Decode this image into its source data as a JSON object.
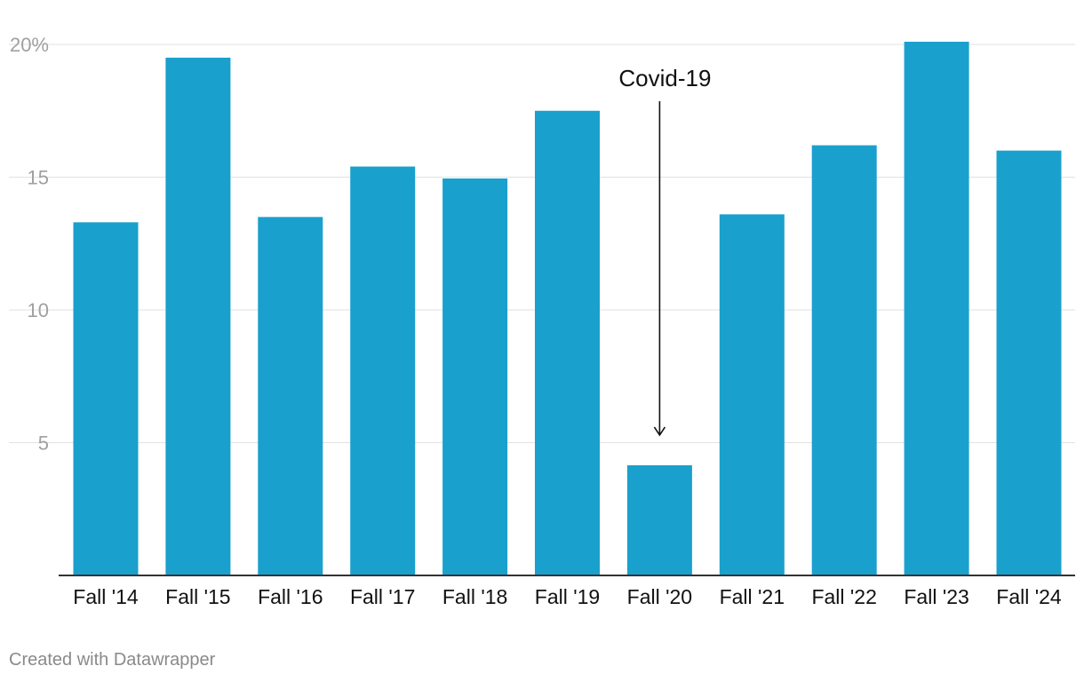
{
  "chart_data": {
    "type": "bar",
    "categories": [
      "Fall '14",
      "Fall '15",
      "Fall '16",
      "Fall '17",
      "Fall '18",
      "Fall '19",
      "Fall '20",
      "Fall '21",
      "Fall '22",
      "Fall '23",
      "Fall '24"
    ],
    "values": [
      13.3,
      19.5,
      13.5,
      15.4,
      14.95,
      17.5,
      4.15,
      13.6,
      16.2,
      20.1,
      16.0
    ],
    "ylim": [
      0,
      20
    ],
    "yticks": [
      5,
      10,
      15,
      20
    ],
    "ytick_labels": [
      "5",
      "10",
      "15",
      "20%"
    ],
    "grid": true,
    "bar_color": "#1aa0cc",
    "annotation": {
      "text": "Covid-19",
      "category": "Fall '20"
    }
  },
  "footer": {
    "credit": "Created with Datawrapper"
  }
}
